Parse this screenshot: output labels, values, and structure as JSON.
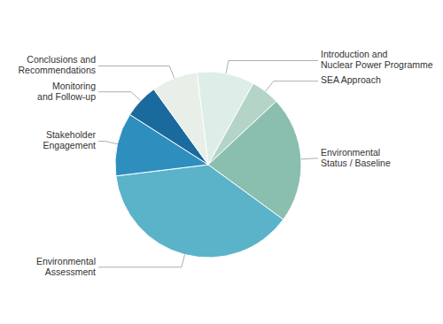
{
  "chart_data": {
    "type": "pie",
    "categories": [
      "Introduction and\nNuclear Power Programme",
      "SEA Approach",
      "Environmental\nStatus / Baseline",
      "Environmental\nAssessment",
      "Stakeholder\nEngagement",
      "Monitoring\nand Follow-up",
      "Conclusions and\nRecommendations"
    ],
    "values": [
      10,
      5,
      22,
      38,
      11,
      6,
      8
    ],
    "colors": [
      "#ddeee8",
      "#b5d4c8",
      "#8abfb0",
      "#5ab3c8",
      "#2e8fbf",
      "#1b6a9e",
      "#e8eee8"
    ]
  }
}
